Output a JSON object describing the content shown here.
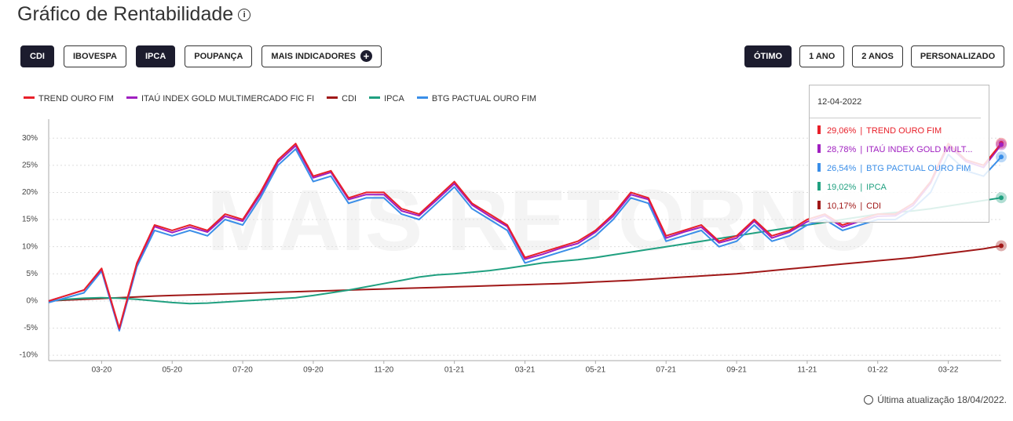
{
  "header": {
    "title": "Gráfico de Rentabilidade"
  },
  "buttons_left": [
    {
      "label": "CDI",
      "active": true
    },
    {
      "label": "IBOVESPA",
      "active": false
    },
    {
      "label": "IPCA",
      "active": true
    },
    {
      "label": "POUPANÇA",
      "active": false
    },
    {
      "label": "MAIS INDICADORES",
      "active": false
    }
  ],
  "buttons_right": [
    {
      "label": "ÓTIMO",
      "active": true
    },
    {
      "label": "1 ANO",
      "active": false
    },
    {
      "label": "2 ANOS",
      "active": false
    },
    {
      "label": "PERSONALIZADO",
      "active": false
    }
  ],
  "footer": "Última atualização 18/04/2022.",
  "watermark": "MAIS RETORNO",
  "chart_data": {
    "type": "line",
    "categories": [
      null,
      null,
      null,
      "03-20",
      null,
      null,
      null,
      "05-20",
      null,
      null,
      null,
      "07-20",
      null,
      null,
      null,
      "09-20",
      null,
      null,
      null,
      "11-20",
      null,
      null,
      null,
      "01-21",
      null,
      null,
      null,
      "03-21",
      null,
      null,
      null,
      "05-21",
      null,
      null,
      null,
      "07-21",
      null,
      null,
      null,
      "09-21",
      null,
      null,
      null,
      "11-21",
      null,
      null,
      null,
      "01-22",
      null,
      null,
      null,
      "03-22",
      null,
      null,
      null
    ],
    "ylim": [
      -11,
      33.5
    ],
    "yticks": [
      {
        "value": -10,
        "label": "-10%"
      },
      {
        "value": -5,
        "label": "-5%"
      },
      {
        "value": 0,
        "label": "0%"
      },
      {
        "value": 5,
        "label": "5%"
      },
      {
        "value": 10,
        "label": "10%"
      },
      {
        "value": 15,
        "label": "15%"
      },
      {
        "value": 20,
        "label": "20%"
      },
      {
        "value": 25,
        "label": "25%"
      },
      {
        "value": 30,
        "label": "30%"
      }
    ],
    "grid": true,
    "series": [
      {
        "name": "TREND OURO FIM",
        "color": "#e8202a",
        "values": [
          0,
          1,
          2,
          6,
          -5,
          7,
          14,
          13,
          14,
          13,
          16,
          15,
          20,
          26,
          29,
          23,
          24,
          19,
          20,
          20,
          17,
          16,
          19,
          22,
          18,
          16,
          14,
          8,
          9,
          10,
          11,
          13,
          16,
          20,
          19,
          12,
          13,
          14,
          11,
          12,
          15,
          12,
          13,
          15,
          16,
          14,
          15,
          16,
          16,
          18,
          22,
          29,
          26,
          25,
          29.06
        ]
      },
      {
        "name": "ITAÚ INDEX GOLD MULTIMERCADO FIC FI",
        "color": "#a020c0",
        "values": [
          0,
          1,
          2,
          5.8,
          -5.2,
          6.8,
          13.7,
          12.6,
          13.6,
          12.7,
          15.6,
          14.7,
          19.6,
          25.6,
          28.6,
          22.7,
          23.7,
          18.7,
          19.6,
          19.6,
          16.6,
          15.7,
          18.6,
          21.6,
          17.7,
          15.6,
          13.7,
          7.7,
          8.6,
          9.7,
          10.6,
          12.7,
          15.6,
          19.6,
          18.7,
          11.6,
          12.7,
          13.6,
          10.7,
          11.6,
          14.7,
          11.6,
          12.7,
          14.6,
          15.7,
          13.6,
          14.7,
          15.6,
          15.7,
          17.6,
          21.7,
          28.6,
          25.7,
          24.6,
          28.78
        ]
      },
      {
        "name": "CDI",
        "color": "#a01818",
        "values": [
          0,
          0.15,
          0.3,
          0.45,
          0.6,
          0.75,
          0.9,
          1.0,
          1.1,
          1.2,
          1.3,
          1.4,
          1.5,
          1.6,
          1.7,
          1.8,
          1.9,
          2.0,
          2.1,
          2.2,
          2.3,
          2.4,
          2.5,
          2.6,
          2.7,
          2.8,
          2.9,
          3.0,
          3.1,
          3.2,
          3.35,
          3.5,
          3.65,
          3.8,
          4.0,
          4.2,
          4.4,
          4.6,
          4.8,
          5.0,
          5.3,
          5.6,
          5.9,
          6.2,
          6.5,
          6.8,
          7.1,
          7.4,
          7.7,
          8.0,
          8.4,
          8.8,
          9.2,
          9.6,
          10.17
        ]
      },
      {
        "name": "IPCA",
        "color": "#20a080",
        "values": [
          0,
          0.3,
          0.5,
          0.6,
          0.5,
          0.3,
          0,
          -0.3,
          -0.5,
          -0.4,
          -0.2,
          0,
          0.2,
          0.4,
          0.6,
          1,
          1.5,
          2,
          2.6,
          3.2,
          3.8,
          4.4,
          4.8,
          5,
          5.3,
          5.6,
          6.0,
          6.5,
          7,
          7.3,
          7.6,
          8,
          8.5,
          9,
          9.5,
          10,
          10.5,
          11,
          11.5,
          12,
          12.5,
          13,
          13.5,
          14,
          14.5,
          15,
          15.5,
          16,
          16.3,
          16.6,
          17,
          17.5,
          18,
          18.5,
          19.02
        ]
      },
      {
        "name": "BTG PACTUAL OURO FIM",
        "color": "#3a8ee8",
        "values": [
          -0.3,
          0.6,
          1.5,
          5.5,
          -5.5,
          6.3,
          13,
          12,
          13,
          12,
          15,
          14,
          19,
          25,
          28,
          22,
          23,
          18,
          19,
          19,
          16,
          15,
          18,
          21,
          17,
          15,
          13,
          7,
          8,
          9,
          10,
          12,
          15,
          19,
          18,
          11,
          12,
          13,
          10,
          11,
          14,
          11,
          12,
          14,
          15,
          13,
          14,
          15,
          15,
          17,
          20,
          27,
          24,
          23,
          26.54
        ]
      }
    ],
    "tooltip": {
      "date": "12-04-2022",
      "items": [
        {
          "value_label": "29,06%",
          "name": "TREND OURO FIM",
          "color": "#e8202a"
        },
        {
          "value_label": "28,78%",
          "name": "ITAÚ INDEX GOLD MULT...",
          "color": "#a020c0"
        },
        {
          "value_label": "26,54%",
          "name": "BTG PACTUAL OURO FIM",
          "color": "#3a8ee8"
        },
        {
          "value_label": "19,02%",
          "name": "IPCA",
          "color": "#20a080"
        },
        {
          "value_label": "10,17%",
          "name": "CDI",
          "color": "#a01818"
        }
      ]
    }
  }
}
